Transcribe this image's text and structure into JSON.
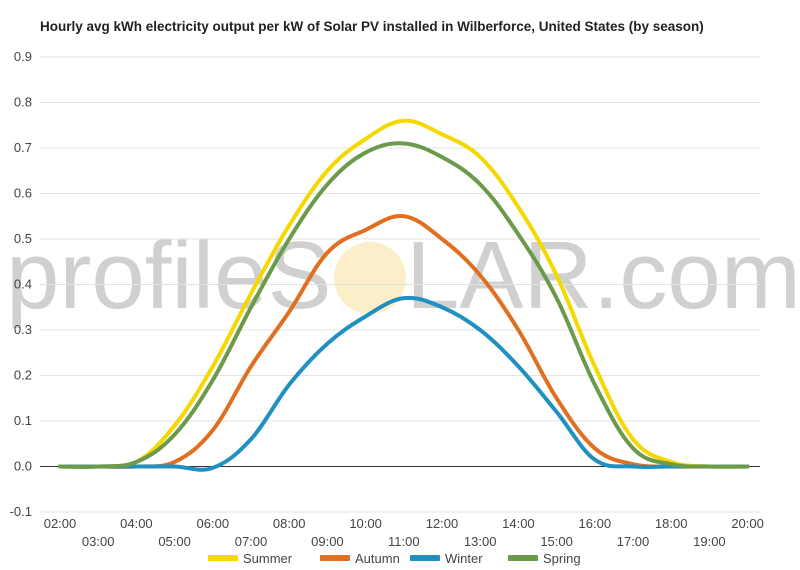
{
  "watermark": {
    "left": "profileS",
    "right": "LAR.com"
  },
  "chart_data": {
    "type": "line",
    "title": "Hourly avg kWh electricity output per kW of Solar PV installed in Wilberforce, United States (by season)",
    "xlabel": "",
    "ylabel": "",
    "ylim": [
      -0.1,
      0.9
    ],
    "yticks": [
      "-0.1",
      "0.0",
      "0.1",
      "0.2",
      "0.3",
      "0.4",
      "0.5",
      "0.6",
      "0.7",
      "0.8",
      "0.9"
    ],
    "x": [
      "02:00",
      "03:00",
      "04:00",
      "05:00",
      "06:00",
      "07:00",
      "08:00",
      "09:00",
      "10:00",
      "11:00",
      "12:00",
      "13:00",
      "14:00",
      "15:00",
      "16:00",
      "17:00",
      "18:00",
      "19:00",
      "20:00"
    ],
    "grid": true,
    "legend_position": "bottom",
    "series": [
      {
        "name": "Summer",
        "color": "#f5d800",
        "values": [
          0,
          0,
          0.01,
          0.09,
          0.22,
          0.38,
          0.53,
          0.65,
          0.72,
          0.76,
          0.73,
          0.68,
          0.57,
          0.42,
          0.22,
          0.06,
          0.01,
          0,
          0
        ]
      },
      {
        "name": "Autumn",
        "color": "#e07020",
        "values": [
          0,
          0,
          0,
          0.01,
          0.08,
          0.22,
          0.34,
          0.47,
          0.52,
          0.55,
          0.5,
          0.42,
          0.3,
          0.15,
          0.04,
          0.005,
          0,
          0,
          0
        ]
      },
      {
        "name": "Winter",
        "color": "#2090c0",
        "values": [
          0,
          0,
          0,
          0,
          -0.003,
          0.06,
          0.18,
          0.27,
          0.33,
          0.37,
          0.35,
          0.3,
          0.22,
          0.12,
          0.015,
          0,
          0,
          0,
          0
        ]
      },
      {
        "name": "Spring",
        "color": "#6a9a4a",
        "values": [
          0,
          0,
          0.01,
          0.07,
          0.19,
          0.35,
          0.5,
          0.62,
          0.69,
          0.71,
          0.68,
          0.62,
          0.51,
          0.37,
          0.18,
          0.04,
          0.005,
          0,
          0
        ]
      }
    ]
  }
}
